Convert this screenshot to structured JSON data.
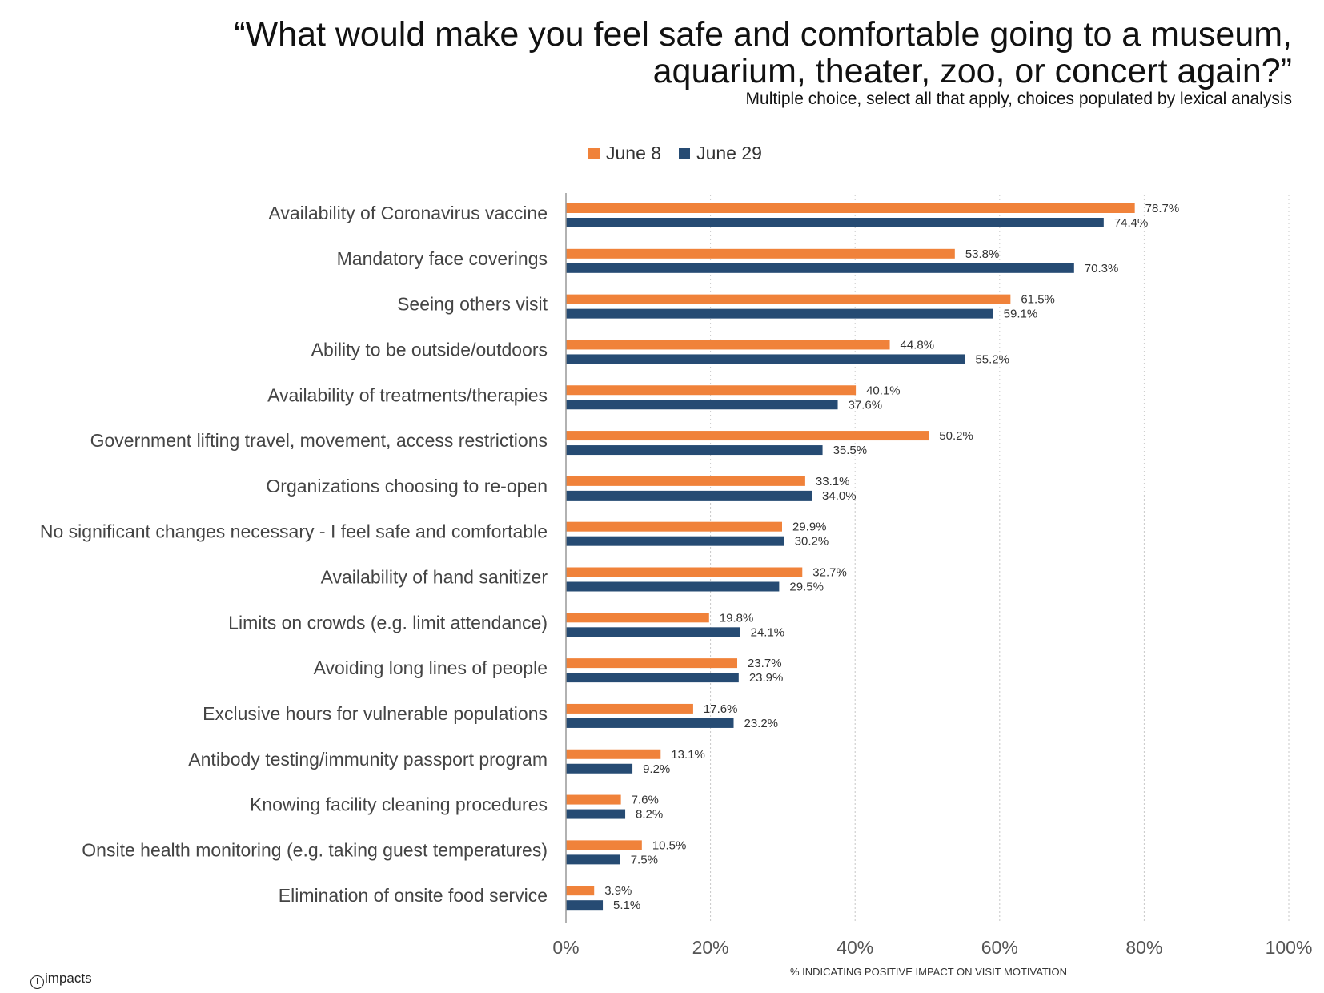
{
  "header": {
    "title_line1": "“What would make you feel safe and comfortable going to a museum,",
    "title_line2": "aquarium, theater, zoo, or concert again?”",
    "subtitle": "Multiple choice, select all that apply, choices populated by lexical analysis"
  },
  "logo": {
    "text": "impacts"
  },
  "chart_data": {
    "type": "bar",
    "orientation": "horizontal",
    "categories": [
      "Availability of Coronavirus vaccine",
      "Mandatory face coverings",
      "Seeing others visit",
      "Ability to be outside/outdoors",
      "Availability of treatments/therapies",
      "Government lifting travel, movement, access restrictions",
      "Organizations choosing to re-open",
      "No significant changes necessary - I feel safe and comfortable",
      "Availability of hand sanitizer",
      "Limits on crowds (e.g. limit attendance)",
      "Avoiding long lines of people",
      "Exclusive hours for vulnerable populations",
      "Antibody testing/immunity passport program",
      "Knowing facility cleaning procedures",
      "Onsite health monitoring (e.g. taking guest temperatures)",
      "Elimination of onsite food service"
    ],
    "series": [
      {
        "name": "June 8",
        "color": "#F0823A",
        "values": [
          78.7,
          53.8,
          61.5,
          44.8,
          40.1,
          50.2,
          33.1,
          29.9,
          32.7,
          19.8,
          23.7,
          17.6,
          13.1,
          7.6,
          10.5,
          3.9
        ],
        "labels": [
          "78.7%",
          "53.8%",
          "61.5%",
          "44.8%",
          "40.1%",
          "50.2%",
          "33.1%",
          "29.9%",
          "32.7%",
          "19.8%",
          "23.7%",
          "17.6%",
          "13.1%",
          "7.6%",
          "10.5%",
          "3.9%"
        ]
      },
      {
        "name": "June 29",
        "color": "#264B73",
        "values": [
          74.4,
          70.3,
          59.1,
          55.2,
          37.6,
          35.5,
          34.0,
          30.2,
          29.5,
          24.1,
          23.9,
          23.2,
          9.2,
          8.2,
          7.5,
          5.1
        ],
        "labels": [
          "74.4%",
          "70.3%",
          "59.1%",
          "55.2%",
          "37.6%",
          "35.5%",
          "34.0%",
          "30.2%",
          "29.5%",
          "24.1%",
          "23.9%",
          "23.2%",
          "9.2%",
          "8.2%",
          "7.5%",
          "5.1%"
        ]
      }
    ],
    "xlim": [
      0,
      100
    ],
    "xticks": [
      0,
      20,
      40,
      60,
      80,
      100
    ],
    "xtick_labels": [
      "0%",
      "20%",
      "40%",
      "60%",
      "80%",
      "100%"
    ],
    "xlabel": "% INDICATING POSITIVE IMPACT ON VISIT MOTIVATION",
    "grid": "vertical dotted",
    "legend_position": "top"
  }
}
